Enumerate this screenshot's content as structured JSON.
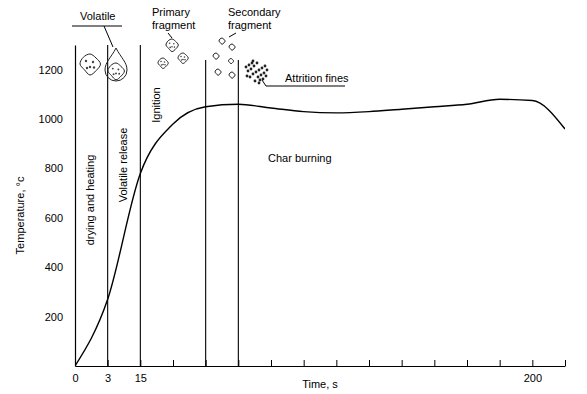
{
  "chart_data": {
    "type": "line",
    "x_label": "Time, s",
    "y_label": "Temperature, °c",
    "categories": [
      "0",
      "3",
      "15",
      null,
      null,
      null,
      null,
      null,
      null,
      null,
      null,
      null,
      null,
      null,
      "200",
      null
    ],
    "values": [
      0,
      270,
      780,
      980,
      1050,
      1060,
      1045,
      1030,
      1025,
      1030,
      1040,
      1050,
      1060,
      1080,
      1075,
      960
    ],
    "color": "#000000",
    "ylim": [
      0,
      1300
    ],
    "yticks": [
      200,
      400,
      600,
      800,
      1000,
      1200
    ],
    "grid": false,
    "boundaries": [
      1,
      2,
      4,
      5
    ],
    "phases": [
      "drying and heating",
      "Volatile release",
      "Ignition"
    ],
    "annotations": [
      "Volatile",
      "Primary fragment",
      "Secondary fragment",
      "Attrition fines",
      "Char burning"
    ]
  }
}
